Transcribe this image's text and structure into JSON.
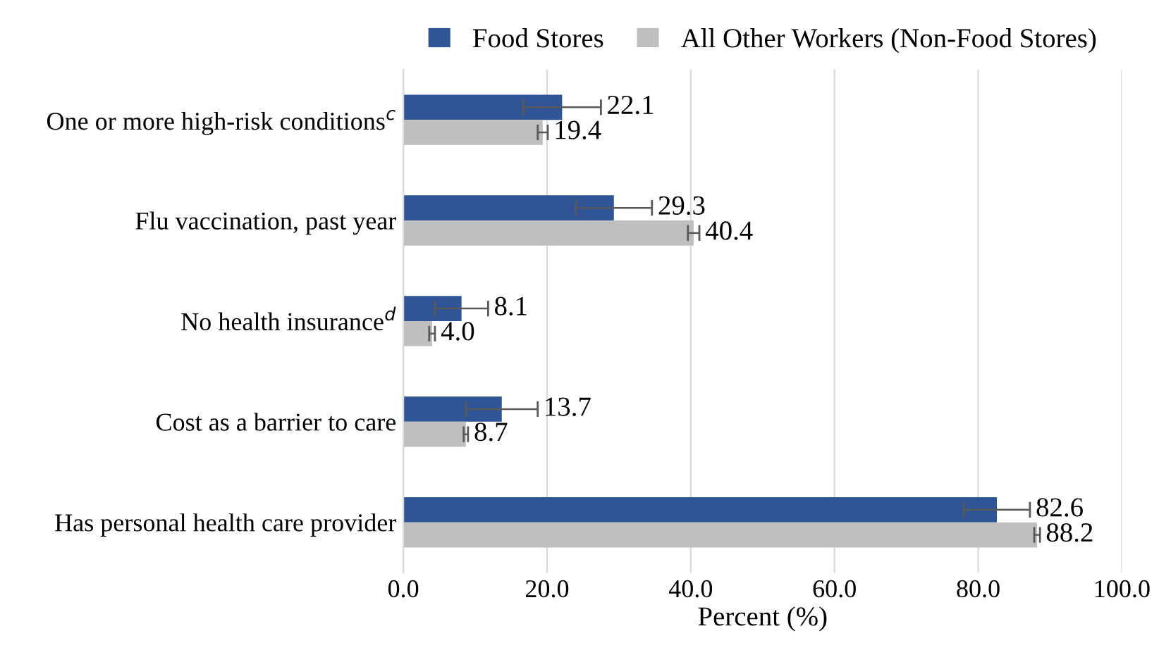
{
  "chart_data": {
    "type": "bar",
    "orientation": "horizontal",
    "xlabel": "Percent (%)",
    "categories": [
      "One or more high-risk conditions$^{c}$",
      "Flu vaccination, past year",
      "No health insurance$^{d}$",
      "Cost as a barrier to care",
      "Has personal health care provider"
    ],
    "series": [
      {
        "name": "Food Stores",
        "color": "#2f5597",
        "values": [
          22.1,
          29.3,
          8.1,
          13.7,
          82.6
        ],
        "errors": [
          5.4,
          5.3,
          3.7,
          5.0,
          4.6
        ],
        "value_labels": [
          "22.1",
          "29.3",
          "8.1",
          "13.7",
          "82.6"
        ]
      },
      {
        "name": "All Other Workers (Non-Food Stores)",
        "color": "#bfbfbf",
        "values": [
          19.4,
          40.4,
          4.0,
          8.7,
          88.2
        ],
        "errors": [
          0.7,
          0.8,
          0.4,
          0.3,
          0.4
        ],
        "value_labels": [
          "19.4",
          "40.4",
          "4.0",
          "8.7",
          "88.2"
        ]
      }
    ],
    "xlim": [
      0,
      100
    ],
    "xticks": [
      {
        "value": 0,
        "label": "0.0"
      },
      {
        "value": 20,
        "label": "20.0"
      },
      {
        "value": 40,
        "label": "40.0"
      },
      {
        "value": 60,
        "label": "60.0"
      },
      {
        "value": 80,
        "label": "80.0"
      },
      {
        "value": 100,
        "label": "100.0"
      }
    ],
    "grid": "x",
    "legend": "top"
  }
}
